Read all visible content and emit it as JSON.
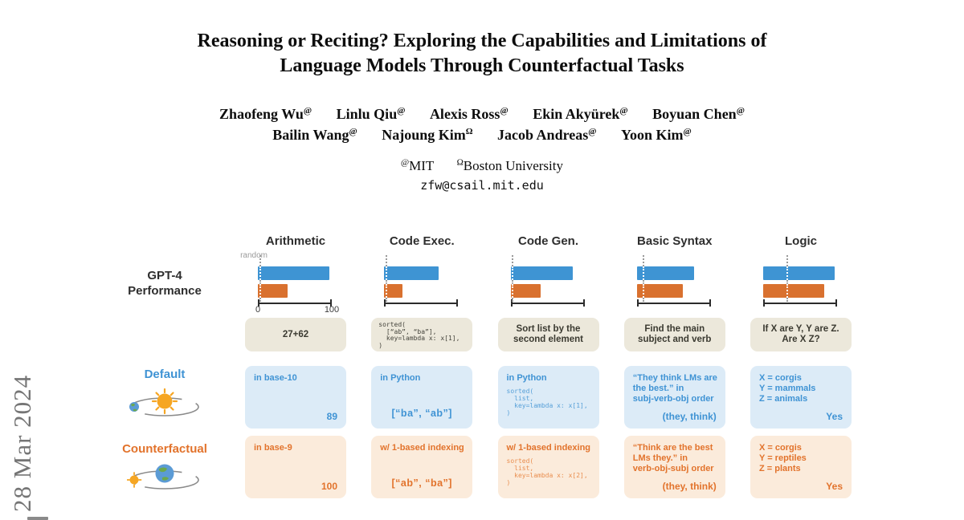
{
  "page": {
    "watermark": "28 Mar 2024"
  },
  "paper": {
    "title_line1": "Reasoning or Reciting? Exploring the Capabilities and Limitations of",
    "title_line2": "Language Models Through Counterfactual Tasks",
    "authors": [
      {
        "name": "Zhaofeng Wu",
        "sup": "@"
      },
      {
        "name": "Linlu Qiu",
        "sup": "@"
      },
      {
        "name": "Alexis Ross",
        "sup": "@"
      },
      {
        "name": "Ekin Akyürek",
        "sup": "@"
      },
      {
        "name": "Boyuan Chen",
        "sup": "@"
      },
      {
        "name": "Bailin Wang",
        "sup": "@"
      },
      {
        "name": "Najoung Kim",
        "sup": "Ω"
      },
      {
        "name": "Jacob Andreas",
        "sup": "@"
      },
      {
        "name": "Yoon Kim",
        "sup": "@"
      }
    ],
    "affiliations": [
      {
        "sup": "@",
        "name": "MIT"
      },
      {
        "sup": "Ω",
        "name": "Boston University"
      }
    ],
    "email": "zfw@csail.mit.edu"
  },
  "figure": {
    "row_labels": {
      "performance": "GPT-4\nPerformance",
      "default": "Default",
      "counterfactual": "Counterfactual"
    },
    "legend": {
      "random_label": "random",
      "axis_min": "0",
      "axis_max": "100"
    },
    "columns": [
      {
        "header": "Arithmetic",
        "chart": {
          "random_pct": 2,
          "default_pct": 97,
          "counterfactual_pct": 40
        },
        "task": "27+62",
        "default": {
          "label": "in base-10",
          "answer": "89"
        },
        "counterfactual": {
          "label": "in base-9",
          "answer": "100"
        }
      },
      {
        "header": "Code Exec.",
        "chart": {
          "random_pct": 2,
          "default_pct": 74,
          "counterfactual_pct": 25
        },
        "task_code": "sorted(\n  [“ab”, “ba”],\n  key=lambda x: x[1],\n)",
        "default": {
          "label": "in Python",
          "center_answer": "[“ba”, “ab”]"
        },
        "counterfactual": {
          "label": "w/ 1-based indexing",
          "center_answer": "[“ab”, “ba”]"
        }
      },
      {
        "header": "Code Gen.",
        "chart": {
          "random_pct": 2,
          "default_pct": 84,
          "counterfactual_pct": 41
        },
        "task": "Sort list by the\nsecond element",
        "default": {
          "label": "in Python",
          "code": "sorted(\n  list,\n  key=lambda x: x[1],\n)"
        },
        "counterfactual": {
          "label": "w/ 1-based indexing",
          "code": "sorted(\n  list,\n  key=lambda x: x[2],\n)"
        }
      },
      {
        "header": "Basic Syntax",
        "chart": {
          "random_pct": 8,
          "default_pct": 77,
          "counterfactual_pct": 62
        },
        "task": "Find the main\nsubject and verb",
        "default": {
          "label": "“They think LMs are\nthe best.” in\nsubj-verb-obj order",
          "answer": "(they, think)"
        },
        "counterfactual": {
          "label": "“Think are the best\nLMs they.” in\nverb-obj-subj order",
          "answer": "(they, think)"
        }
      },
      {
        "header": "Logic",
        "chart": {
          "random_pct": 32,
          "default_pct": 97,
          "counterfactual_pct": 83
        },
        "task": "If X are Y, Y are Z.\nAre X Z?",
        "default": {
          "label": "X = corgis\nY = mammals\nZ = animals",
          "answer": "Yes"
        },
        "counterfactual": {
          "label": "X = corgis\nY = reptiles\nZ = plants",
          "answer": "Yes"
        }
      }
    ]
  },
  "colors": {
    "bar_default_blue": "#3E94D3",
    "bar_counterfactual_orange": "#D9712F",
    "default_box_bg": "#DCEBF7",
    "counterfactual_box_bg": "#FBEBDB",
    "task_box_bg": "#ECE8DB",
    "default_text": "#3F93D4",
    "counterfactual_text": "#E2732C",
    "watermark_gray": "#757575"
  },
  "chart_data": {
    "type": "bar",
    "orientation": "horizontal",
    "title": "GPT-4 Performance",
    "categories": [
      "Arithmetic",
      "Code Exec.",
      "Code Gen.",
      "Basic Syntax",
      "Logic"
    ],
    "series": [
      {
        "name": "Default",
        "values": [
          97,
          74,
          84,
          77,
          97
        ],
        "color": "#3E94D3"
      },
      {
        "name": "Counterfactual",
        "values": [
          40,
          25,
          41,
          62,
          83
        ],
        "color": "#D9712F"
      },
      {
        "name": "random baseline",
        "values": [
          2,
          2,
          2,
          8,
          32
        ],
        "style": "dotted-line"
      }
    ],
    "xlabel": "",
    "ylabel": "",
    "xlim": [
      0,
      100
    ],
    "axis_ticks_shown": [
      "0",
      "100"
    ],
    "grid": false,
    "legend_position": "none"
  }
}
